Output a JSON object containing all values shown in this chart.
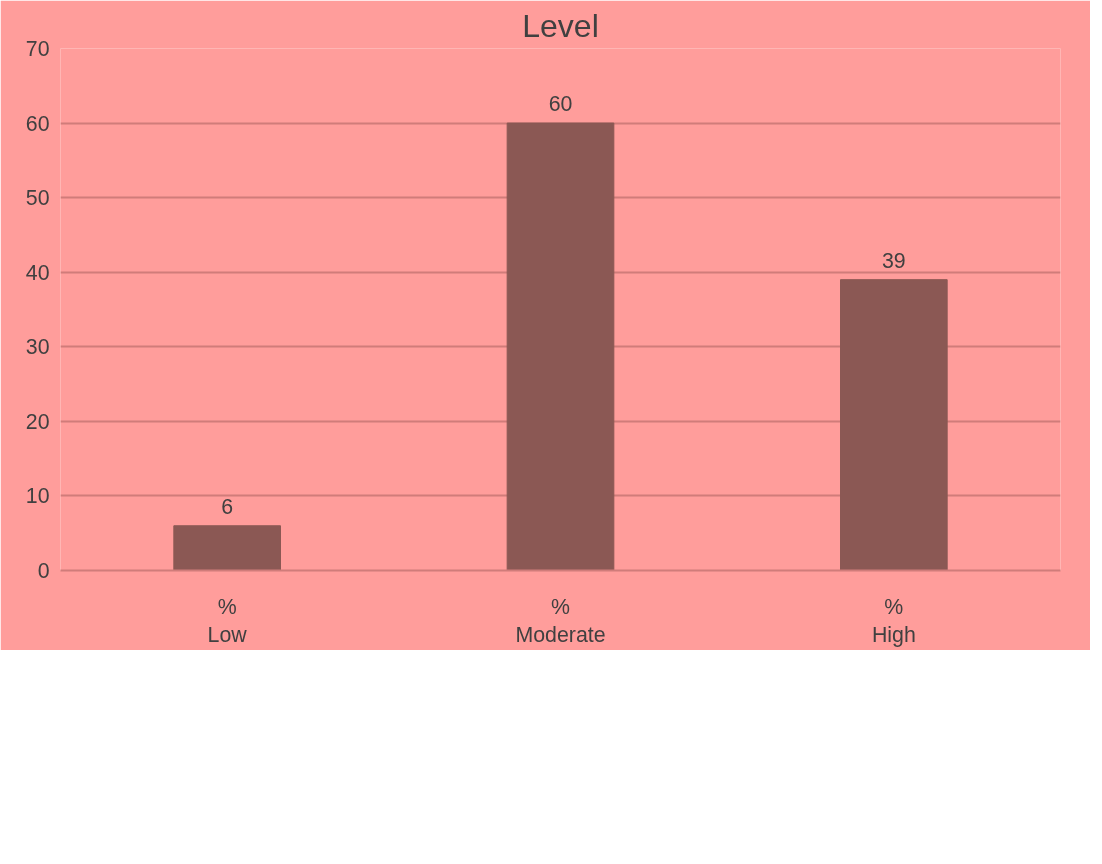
{
  "chart_data": {
    "type": "bar",
    "title": "Level",
    "categories": [
      "%\nLow",
      "%\nModerate",
      "%\nHigh"
    ],
    "values": [
      6,
      60,
      39
    ],
    "color": "#8b5854",
    "ylim": [
      0,
      70
    ],
    "yticks": [
      0,
      10,
      20,
      30,
      40,
      50,
      60,
      70
    ],
    "grid": "y",
    "data_labels": true
  }
}
